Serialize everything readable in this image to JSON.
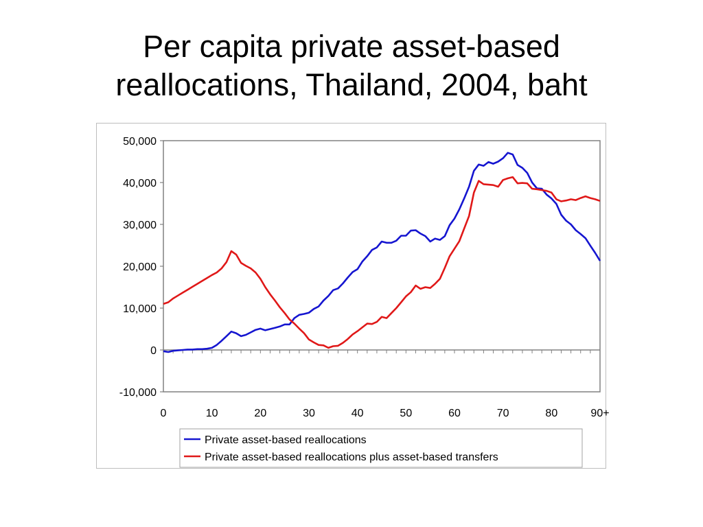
{
  "slide": {
    "title_line1": "Per capita private asset-based",
    "title_line2": "reallocations, Thailand, 2004, baht"
  },
  "chart_data": {
    "type": "line",
    "title": "",
    "xlabel": "",
    "ylabel": "",
    "xlim": [
      0,
      90
    ],
    "ylim": [
      -10000,
      50000
    ],
    "x_ticks": [
      0,
      10,
      20,
      30,
      40,
      50,
      60,
      70,
      80,
      90
    ],
    "x_tick_labels": [
      "0",
      "10",
      "20",
      "30",
      "40",
      "50",
      "60",
      "70",
      "80",
      "90+"
    ],
    "y_ticks": [
      -10000,
      0,
      10000,
      20000,
      30000,
      40000,
      50000
    ],
    "y_tick_labels": [
      "-10,000",
      "0",
      "10,000",
      "20,000",
      "30,000",
      "40,000",
      "50,000"
    ],
    "grid": false,
    "legend_position": "bottom",
    "x": [
      0,
      1,
      2,
      3,
      4,
      5,
      6,
      7,
      8,
      9,
      10,
      11,
      12,
      13,
      14,
      15,
      16,
      17,
      18,
      19,
      20,
      21,
      22,
      23,
      24,
      25,
      26,
      27,
      28,
      29,
      30,
      31,
      32,
      33,
      34,
      35,
      36,
      37,
      38,
      39,
      40,
      41,
      42,
      43,
      44,
      45,
      46,
      47,
      48,
      49,
      50,
      51,
      52,
      53,
      54,
      55,
      56,
      57,
      58,
      59,
      60,
      61,
      62,
      63,
      64,
      65,
      66,
      67,
      68,
      69,
      70,
      71,
      72,
      73,
      74,
      75,
      76,
      77,
      78,
      79,
      80,
      81,
      82,
      83,
      84,
      85,
      86,
      87,
      88,
      89,
      90
    ],
    "series": [
      {
        "name": "Private asset-based reallocations",
        "color": "#1515d0",
        "values": [
          -300,
          -500,
          -200,
          -100,
          0,
          100,
          100,
          200,
          200,
          300,
          500,
          1200,
          2200,
          3300,
          4400,
          4000,
          3300,
          3600,
          4200,
          4800,
          5100,
          4700,
          5000,
          5300,
          5600,
          6100,
          6100,
          7600,
          8400,
          8600,
          8900,
          9800,
          10400,
          11800,
          12900,
          14300,
          14700,
          15900,
          17300,
          18600,
          19300,
          21100,
          22400,
          23900,
          24500,
          25900,
          25600,
          25600,
          26100,
          27300,
          27300,
          28500,
          28600,
          27800,
          27200,
          25900,
          26600,
          26300,
          27200,
          29800,
          31400,
          33600,
          36200,
          39000,
          42800,
          44300,
          44000,
          44900,
          44500,
          45000,
          45800,
          47100,
          46700,
          44200,
          43500,
          42300,
          40000,
          38600,
          38500,
          37100,
          36200,
          34900,
          32300,
          30900,
          30000,
          28600,
          27700,
          26700,
          24900,
          23200,
          21300
        ]
      },
      {
        "name": "Private asset-based reallocations plus asset-based transfers",
        "color": "#e01818",
        "values": [
          11000,
          11400,
          12300,
          13000,
          13700,
          14400,
          15100,
          15800,
          16500,
          17200,
          17900,
          18500,
          19500,
          21000,
          23600,
          22800,
          20800,
          20100,
          19500,
          18500,
          17000,
          15000,
          13300,
          11800,
          10200,
          8800,
          7300,
          6300,
          5100,
          4000,
          2500,
          1800,
          1200,
          1100,
          500,
          900,
          1000,
          1700,
          2600,
          3700,
          4500,
          5400,
          6300,
          6200,
          6700,
          7900,
          7600,
          8800,
          10000,
          11400,
          12800,
          13800,
          15400,
          14600,
          15000,
          14800,
          15800,
          17000,
          19600,
          22400,
          24200,
          26000,
          29000,
          32000,
          37600,
          40400,
          39600,
          39500,
          39400,
          39000,
          40600,
          41000,
          41300,
          39800,
          39900,
          39800,
          38500,
          38400,
          38200,
          38000,
          37600,
          36000,
          35500,
          35700,
          36000,
          35800,
          36300,
          36700,
          36300,
          36000,
          35600
        ]
      }
    ]
  }
}
